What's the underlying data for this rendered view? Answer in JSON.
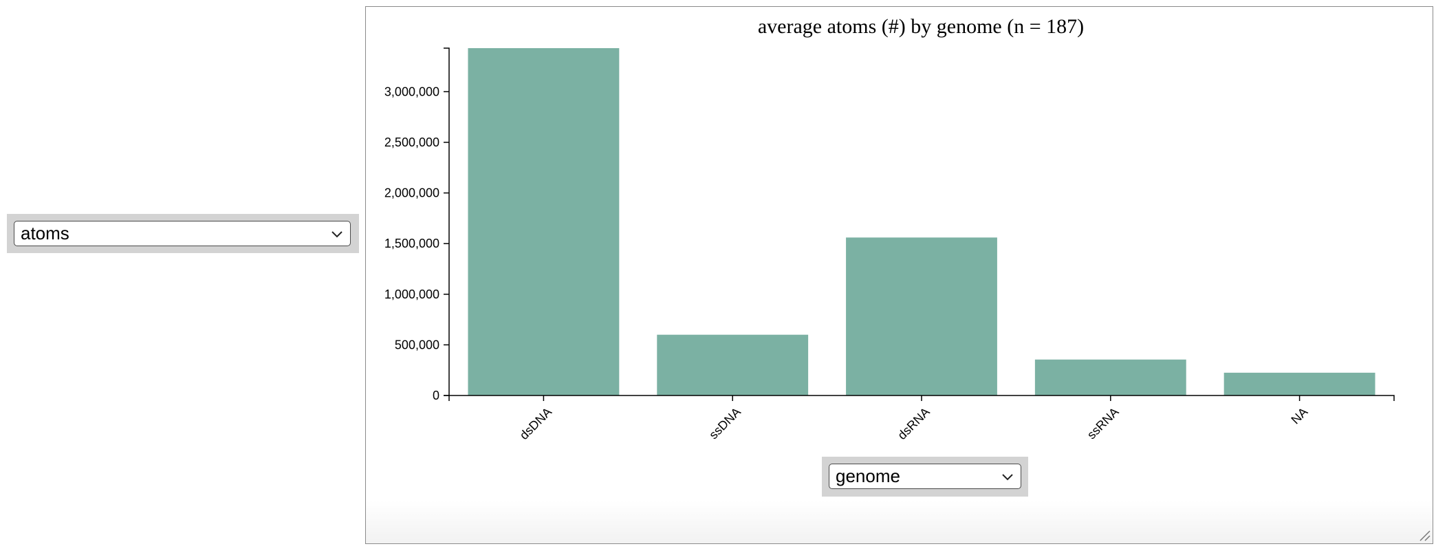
{
  "y_selector": {
    "selected": "atoms",
    "icon": "chevron-down-icon"
  },
  "x_selector": {
    "selected": "genome",
    "icon": "chevron-down-icon"
  },
  "chart_data": {
    "type": "bar",
    "title": "average atoms (#) by genome (n = 187)",
    "xlabel": "",
    "ylabel": "",
    "categories": [
      "dsDNA",
      "ssDNA",
      "dsRNA",
      "ssRNA",
      "NA"
    ],
    "values": [
      3430000,
      600000,
      1560000,
      355000,
      225000
    ],
    "ylim": [
      0,
      3430000
    ],
    "yticks": [
      0,
      500000,
      1000000,
      1500000,
      2000000,
      2500000,
      3000000
    ],
    "ytick_labels": [
      "0",
      "500,000",
      "1,000,000",
      "1,500,000",
      "2,000,000",
      "2,500,000",
      "3,000,000"
    ],
    "bar_color": "#7bb1a3",
    "grid": false,
    "legend": "none"
  }
}
